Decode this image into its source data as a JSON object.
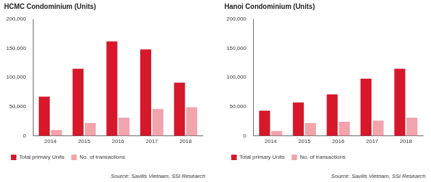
{
  "chart_data": [
    {
      "type": "bar",
      "title": "HCMC Condominium (Units)",
      "categories": [
        "2014",
        "2015",
        "2016",
        "2017",
        "2018"
      ],
      "series": [
        {
          "name": "Total primary Units",
          "color": "#d7182a",
          "values": [
            67000,
            115000,
            162000,
            148000,
            91000
          ]
        },
        {
          "name": "No. of transactions",
          "color": "#f2a3ab",
          "values": [
            10000,
            22000,
            31000,
            46000,
            49000
          ]
        }
      ],
      "ylim": [
        0,
        200000
      ],
      "yticks": [
        0,
        {
          "value": 50000,
          "label": "50,000"
        },
        {
          "value": 100000,
          "label": "100,000"
        },
        {
          "value": 150000,
          "label": "150,000"
        },
        {
          "value": 200000,
          "label": "200,000"
        }
      ],
      "grid": false,
      "legend": "bottom",
      "annotations": [
        "Source: Savills Vietnam, SSI Research"
      ]
    },
    {
      "type": "bar",
      "title": "Hanoi Condominium (Units)",
      "categories": [
        "2014",
        "2015",
        "2016",
        "2017",
        "2018"
      ],
      "series": [
        {
          "name": "Total primary Units",
          "color": "#d7182a",
          "values": [
            43000,
            57000,
            71000,
            98000,
            115000
          ]
        },
        {
          "name": "No. of transactions",
          "color": "#f2a3ab",
          "values": [
            8000,
            22000,
            24000,
            26000,
            31000
          ]
        }
      ],
      "ylim": [
        0,
        200000
      ],
      "yticks": [
        0,
        {
          "value": 50000,
          "label": "50,000"
        },
        {
          "value": 100000,
          "label": "100,000"
        },
        {
          "value": 150000,
          "label": "150,000"
        },
        {
          "value": 200000,
          "label": "200,000"
        }
      ],
      "grid": false,
      "legend": "bottom",
      "annotations": [
        "Source: Savills Vietnam, SSI Research"
      ]
    }
  ]
}
